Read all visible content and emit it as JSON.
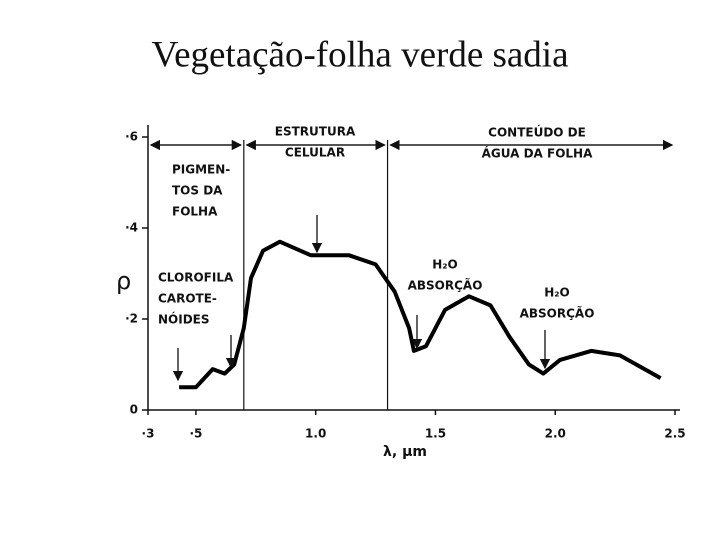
{
  "chart_data": {
    "type": "line",
    "title": "Vegetação-folha verde sadia",
    "x_label": "λ, µm",
    "y_label": "ρ",
    "x": [
      0.43,
      0.5,
      0.57,
      0.62,
      0.66,
      0.7,
      0.73,
      0.78,
      0.85,
      0.98,
      1.14,
      1.25,
      1.33,
      1.39,
      1.41,
      1.46,
      1.54,
      1.64,
      1.73,
      1.81,
      1.89,
      1.95,
      2.02,
      2.15,
      2.27,
      2.44
    ],
    "values": [
      0.05,
      0.05,
      0.09,
      0.08,
      0.1,
      0.18,
      0.29,
      0.35,
      0.37,
      0.34,
      0.34,
      0.32,
      0.26,
      0.18,
      0.13,
      0.14,
      0.22,
      0.25,
      0.23,
      0.16,
      0.1,
      0.08,
      0.11,
      0.13,
      0.12,
      0.07
    ],
    "color": "#000000",
    "xlim": [
      0.3,
      2.5
    ],
    "ylim": [
      0,
      0.6
    ],
    "xticks": [
      {
        "value": 0.3,
        "label": "·3"
      },
      {
        "value": 0.5,
        "label": "·5"
      },
      {
        "value": 1.0,
        "label": "1.0"
      },
      {
        "value": 1.5,
        "label": "1.5"
      },
      {
        "value": 2.0,
        "label": "2.0"
      },
      2.5
    ],
    "yticks": [
      0,
      {
        "value": 0.2,
        "label": "·2"
      },
      {
        "value": 0.4,
        "label": "·4"
      },
      {
        "value": 0.6,
        "label": "·6"
      }
    ],
    "dividers": [
      0.7,
      1.3
    ],
    "annotations": [
      [
        "PIGMEN-",
        "TOS DA",
        "FOLHA"
      ],
      [
        "ESTRUTURA",
        "CELULAR"
      ],
      [
        "CONTEÚDO DE",
        "ÁGUA DA FOLHA"
      ],
      [
        "CLOROFILA",
        "CAROTE-",
        "NÓIDES"
      ],
      [
        "H₂O",
        "ABSORÇÃO"
      ],
      [
        "H₂O",
        "ABSORÇÃO"
      ]
    ]
  }
}
